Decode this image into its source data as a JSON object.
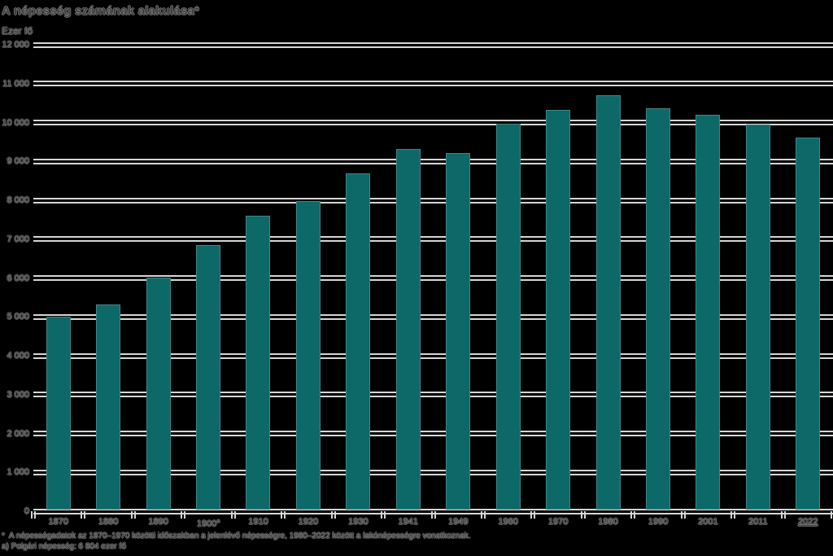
{
  "title": "A népesség számának alakulása*",
  "unit_label": "Ezer fő",
  "footnotes": {
    "line1": "*  A népességadatok az 1870–1970 közötti időszakban a jelenlévő népességre, 1980–2022 között a lakónépességre vonatkoznak.",
    "line2": "a) Polgári népesség: 6 804 ezer fő"
  },
  "colors": {
    "bar": "#0d6868",
    "gridline": "#d5d5d5",
    "text": "#3f3f3f",
    "background": "#000000"
  },
  "chart_data": {
    "type": "bar",
    "title": "A népesség számának alakulása*",
    "ylabel": "Ezer fő",
    "categories": [
      "1870",
      "1880",
      "1890",
      "1900",
      "1910",
      "1920",
      "1930",
      "1941",
      "1949",
      "1960",
      "1970",
      "1980",
      "1990",
      "2001",
      "2011",
      "2022"
    ],
    "category_superscripts": {
      "1900": "a"
    },
    "underlined_categories": [
      "2022"
    ],
    "values": [
      5011,
      5329,
      6009,
      6854,
      7612,
      7987,
      8685,
      9316,
      9205,
      9961,
      10322,
      10709,
      10375,
      10200,
      9938,
      9604
    ],
    "ylim": [
      0,
      12000
    ],
    "ytick_step": 1000,
    "ytick_labels": [
      "0",
      "1 000",
      "2 000",
      "3 000",
      "4 000",
      "5 000",
      "6 000",
      "7 000",
      "8 000",
      "9 000",
      "10 000",
      "11 000",
      "12 000"
    ],
    "grid": true,
    "legend": "none",
    "footnote_marker_on_title": "*"
  }
}
